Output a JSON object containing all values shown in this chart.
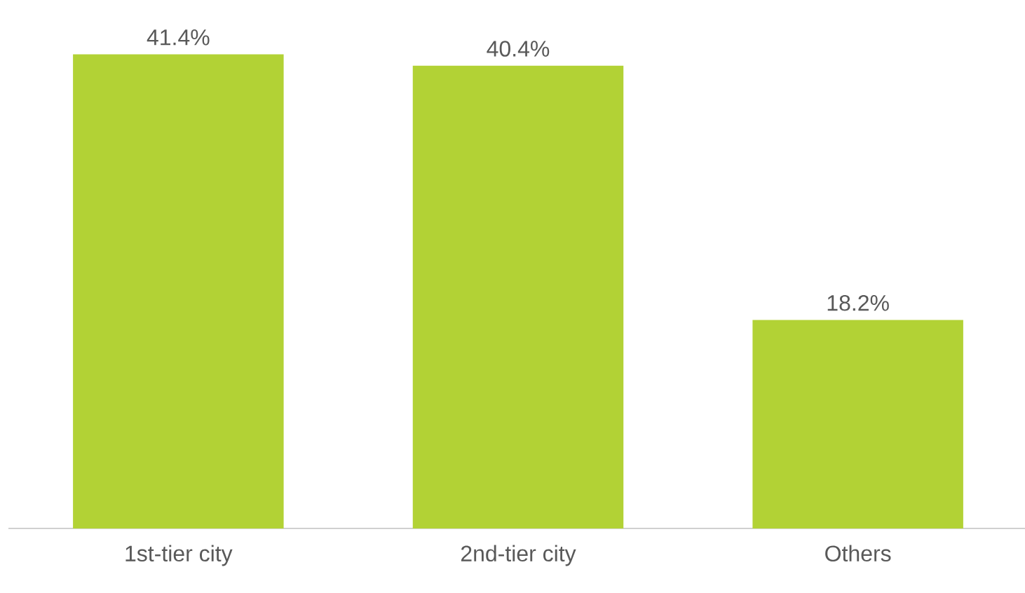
{
  "chart_data": {
    "type": "bar",
    "categories": [
      "1st-tier city",
      "2nd-tier city",
      "Others"
    ],
    "values": [
      41.4,
      40.4,
      18.2
    ],
    "value_labels": [
      "41.4%",
      "40.4%",
      "18.2%"
    ],
    "color": "#b2d235"
  }
}
